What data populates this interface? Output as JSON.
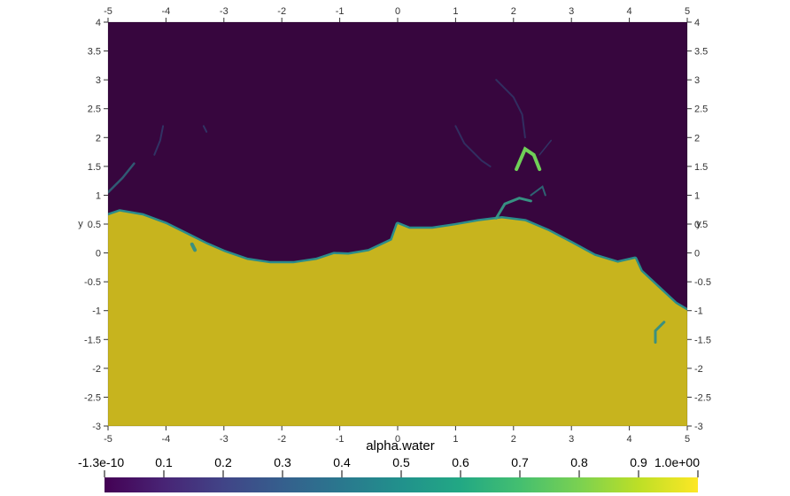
{
  "chart_data": {
    "type": "heatmap",
    "field": "alpha.water",
    "xlabel": "",
    "ylabel": "y",
    "xlim": [
      -5,
      5
    ],
    "ylim": [
      -3,
      4
    ],
    "x_ticks": [
      "-5",
      "-4",
      "-3",
      "-2",
      "-1",
      "0",
      "1",
      "2",
      "3",
      "4",
      "5"
    ],
    "y_ticks": [
      "-3",
      "-2.5",
      "-2",
      "-1.5",
      "-1",
      "-0.5",
      "0",
      "0.5",
      "1",
      "1.5",
      "2",
      "2.5",
      "3",
      "3.5",
      "4"
    ],
    "colorbar": {
      "title": "alpha.water",
      "range": [
        -1.3e-10,
        1.0
      ],
      "tick_labels": [
        "-1.3e-10",
        "0.1",
        "0.2",
        "0.3",
        "0.4",
        "0.5",
        "0.6",
        "0.7",
        "0.8",
        "0.9",
        "1.0e+00"
      ],
      "colormap": "viridis"
    },
    "colors": {
      "air": "#37063e",
      "water": "#c7b41e",
      "interface": "#2b8c8a"
    },
    "free_surface": [
      [
        -5.0,
        0.65
      ],
      [
        -4.8,
        0.72
      ],
      [
        -4.4,
        0.65
      ],
      [
        -4.0,
        0.5
      ],
      [
        -3.6,
        0.3
      ],
      [
        -3.3,
        0.15
      ],
      [
        -3.0,
        0.02
      ],
      [
        -2.6,
        -0.12
      ],
      [
        -2.2,
        -0.18
      ],
      [
        -1.8,
        -0.18
      ],
      [
        -1.4,
        -0.12
      ],
      [
        -1.1,
        -0.02
      ],
      [
        -0.85,
        -0.03
      ],
      [
        -0.5,
        0.03
      ],
      [
        -0.1,
        0.22
      ],
      [
        0.0,
        0.5
      ],
      [
        0.2,
        0.42
      ],
      [
        0.6,
        0.42
      ],
      [
        1.0,
        0.48
      ],
      [
        1.4,
        0.55
      ],
      [
        1.8,
        0.6
      ],
      [
        2.2,
        0.55
      ],
      [
        2.6,
        0.38
      ],
      [
        3.0,
        0.17
      ],
      [
        3.4,
        -0.05
      ],
      [
        3.8,
        -0.17
      ],
      [
        4.1,
        -0.1
      ],
      [
        4.2,
        -0.32
      ],
      [
        4.5,
        -0.6
      ],
      [
        4.8,
        -0.88
      ],
      [
        5.0,
        -1.0
      ]
    ]
  }
}
